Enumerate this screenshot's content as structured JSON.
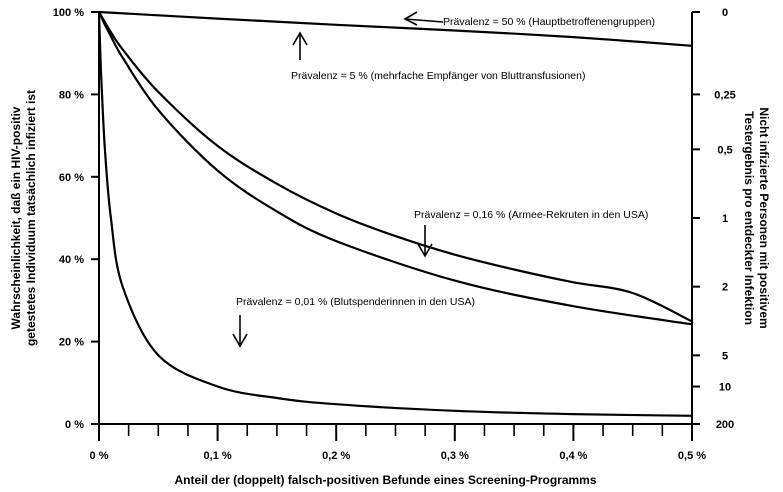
{
  "chart_data": {
    "type": "line",
    "title": "",
    "xlabel": "Anteil der (doppelt) falsch-positiven Befunde eines Screening-Programms",
    "ylabel_left": [
      "Wahrscheinlichkeit, daß ein HIV-positiv",
      "getestetes Individuum tatsächlich infiziert ist"
    ],
    "ylabel_right": [
      "Nicht infizierte Personen mit positivem",
      "Testergebnis pro entdeckter Infektion"
    ],
    "xlim": [
      0,
      0.5
    ],
    "ylim": [
      0,
      100
    ],
    "x_ticks": [
      {
        "value": 0,
        "label": "0 %"
      },
      {
        "value": 0.1,
        "label": "0,1 %"
      },
      {
        "value": 0.2,
        "label": "0,2 %"
      },
      {
        "value": 0.3,
        "label": "0,3 %"
      },
      {
        "value": 0.4,
        "label": "0,4 %"
      },
      {
        "value": 0.5,
        "label": "0,5 %"
      }
    ],
    "x_minor_ticks": [
      0.025,
      0.05,
      0.075,
      0.125,
      0.15,
      0.175,
      0.225,
      0.25,
      0.275,
      0.325,
      0.35,
      0.375,
      0.425,
      0.45,
      0.475
    ],
    "y_ticks": [
      {
        "value": 0,
        "label": "0 %"
      },
      {
        "value": 20,
        "label": "20 %"
      },
      {
        "value": 40,
        "label": "40 %"
      },
      {
        "value": 60,
        "label": "60 %"
      },
      {
        "value": 80,
        "label": "80 %"
      },
      {
        "value": 100,
        "label": "100 %"
      }
    ],
    "y_right_ticks": [
      {
        "label": "0",
        "value": 0
      },
      {
        "label": "0,25",
        "value": 0.25
      },
      {
        "label": "0,5",
        "value": 0.5
      },
      {
        "label": "1",
        "value": 1
      },
      {
        "label": "2",
        "value": 2
      },
      {
        "label": "5",
        "value": 5
      },
      {
        "label": "10",
        "value": 10
      },
      {
        "label": "200",
        "value": 200
      }
    ],
    "series": [
      {
        "prevalence": 50,
        "x": [
          0,
          0.1,
          0.2,
          0.3,
          0.4,
          0.5
        ],
        "y": [
          100,
          98.4,
          96.9,
          95.5,
          93.9,
          91.8
        ]
      },
      {
        "prevalence": 5,
        "x": [
          0,
          0.01,
          0.02,
          0.05,
          0.1,
          0.15,
          0.2,
          0.25,
          0.3,
          0.35,
          0.4,
          0.45,
          0.5
        ],
        "y": [
          100,
          95.1,
          90.9,
          80.6,
          67.5,
          58.3,
          51.1,
          45.6,
          41.1,
          37.5,
          34.4,
          31.8,
          24.9
        ]
      },
      {
        "prevalence": 0.16,
        "x": [
          0,
          0.002,
          0.005,
          0.01,
          0.02,
          0.05,
          0.1,
          0.15,
          0.2,
          0.3,
          0.4,
          0.5
        ],
        "y": [
          100,
          98.8,
          96.9,
          94.1,
          88.9,
          76.2,
          61.5,
          51.6,
          44.4,
          34.8,
          28.6,
          24.2
        ]
      },
      {
        "prevalence": 0.01,
        "x": [
          0,
          0.001,
          0.002,
          0.005,
          0.01,
          0.02,
          0.05,
          0.1,
          0.15,
          0.2,
          0.3,
          0.4,
          0.5
        ],
        "y": [
          100,
          90.9,
          83.3,
          66.7,
          50.0,
          33.3,
          16.7,
          9.1,
          6.3,
          4.8,
          3.2,
          2.4,
          2.0
        ]
      }
    ],
    "annotations": [
      {
        "text": "Prävalenz = 50 % (Hauptbetroffenengruppen)",
        "arrow": "left"
      },
      {
        "text": "Prävalenz = 5 % (mehrfache Empfänger von Bluttransfusionen)",
        "arrow": "up"
      },
      {
        "text": "Prävalenz = 0,16 % (Armee-Rekruten in den USA)",
        "arrow": "down"
      },
      {
        "text": "Prävalenz = 0,01 % (Blutspenderinnen in den USA)",
        "arrow": "down"
      }
    ],
    "grid": false,
    "legend": "none"
  }
}
